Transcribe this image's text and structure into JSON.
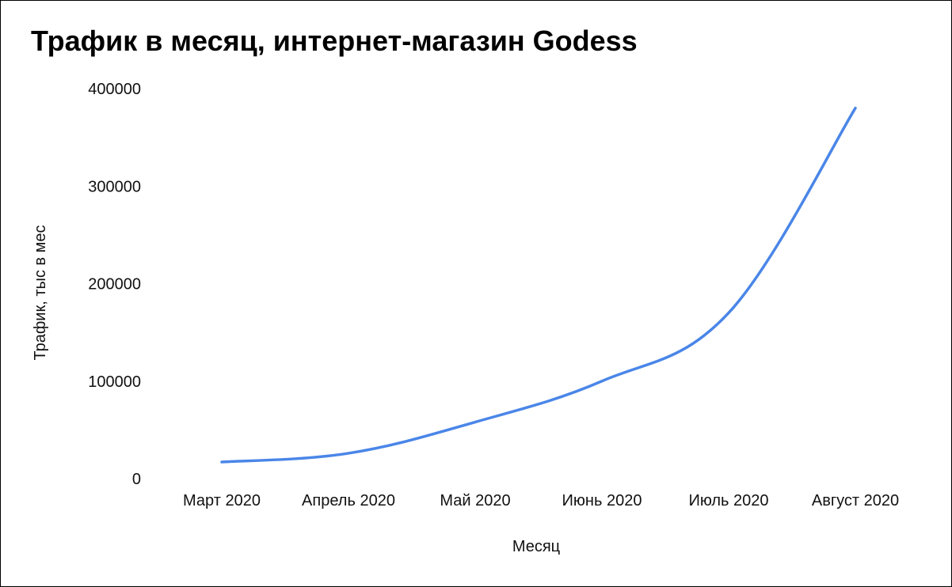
{
  "chart_data": {
    "type": "line",
    "title": "Трафик в месяц, интернет-магазин Godess",
    "xlabel": "Месяц",
    "ylabel": "Трафик, тыс в мес",
    "categories": [
      "Март 2020",
      "Апрель 2020",
      "Май 2020",
      "Июнь 2020",
      "Июль 2020",
      "Август 2020"
    ],
    "series": [
      {
        "values": [
          17000,
          26000,
          58000,
          100000,
          170000,
          380000
        ]
      }
    ],
    "ylim": [
      0,
      400000
    ],
    "yticks": [
      "0",
      "100000",
      "200000",
      "300000",
      "400000"
    ],
    "grid": false,
    "line_color": "#4a86e8"
  }
}
